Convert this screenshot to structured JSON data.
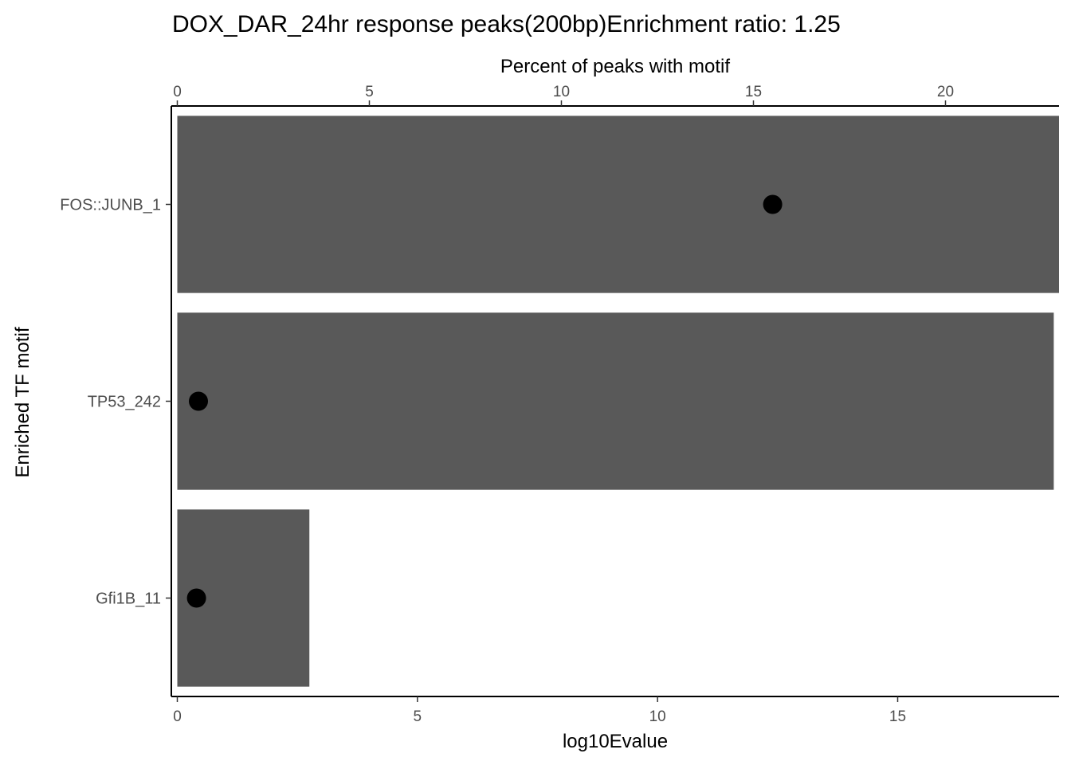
{
  "chart_data": {
    "type": "bar",
    "title": "DOX_DAR_24hr response peaks(200bp)Enrichment ratio: 1.25",
    "ylabel": "Enriched TF motif",
    "bottom_axis": {
      "label": "log10Evalue",
      "lim": [
        0,
        18.4
      ],
      "ticks": [
        0,
        5,
        10,
        15
      ]
    },
    "top_axis": {
      "label": "Percent of peaks with motif",
      "lim": [
        0,
        22.9
      ],
      "ticks": [
        0,
        5,
        10,
        15,
        20
      ]
    },
    "categories": [
      "FOS::JUNB_1",
      "TP53_242",
      "Gfi1B_11"
    ],
    "series": [
      {
        "type": "bar",
        "axis": "bottom",
        "values": [
          18.4,
          18.25,
          2.75
        ],
        "color": "#595959"
      },
      {
        "type": "point",
        "axis": "top",
        "values": [
          15.5,
          0.55,
          0.5
        ],
        "color": "#000000"
      }
    ],
    "grid": false,
    "legend": "none"
  }
}
